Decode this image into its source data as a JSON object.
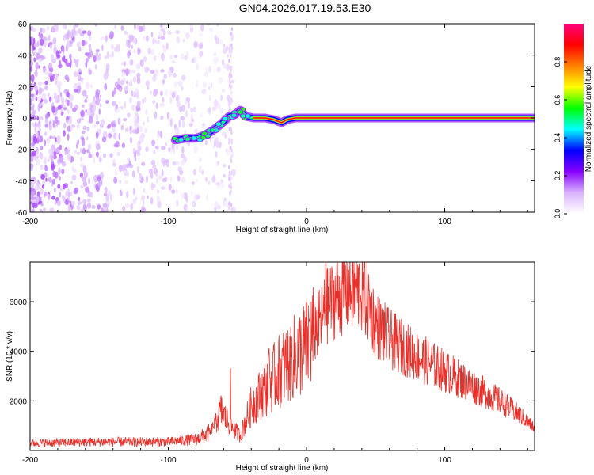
{
  "figure_title": "GN04.2026.017.19.53.E30",
  "chart_data": [
    {
      "type": "heatmap",
      "xlabel": "Height of straight line (km)",
      "ylabel": "Frequency (Hz)",
      "xlim": [
        -200,
        165
      ],
      "ylim": [
        -60,
        60
      ],
      "x_ticks": [
        -200,
        -100,
        0,
        100
      ],
      "y_ticks": [
        -60,
        -40,
        -20,
        0,
        20,
        40,
        60
      ],
      "colorbar": {
        "label": "Normalized spectral amplitude",
        "range": [
          0,
          1
        ],
        "ticks": [
          "0.0",
          "0.2",
          "0.4",
          "0.6",
          "0.8"
        ],
        "colors": [
          "#ffffff",
          "#d9b3ff",
          "#8800ff",
          "#0000ff",
          "#00ffff",
          "#00ff00",
          "#ffff00",
          "#ff8000",
          "#ff0000",
          "#ff0080"
        ]
      },
      "noise_region": {
        "x_range": [
          -200,
          -52
        ],
        "amplitude": 0.15
      },
      "doppler_track": [
        {
          "x": -95,
          "freq": -14
        },
        {
          "x": -88,
          "freq": -13
        },
        {
          "x": -80,
          "freq": -13
        },
        {
          "x": -74,
          "freq": -11
        },
        {
          "x": -68,
          "freq": -8
        },
        {
          "x": -62,
          "freq": -4
        },
        {
          "x": -56,
          "freq": 1
        },
        {
          "x": -52,
          "freq": 2
        },
        {
          "x": -48,
          "freq": 5
        },
        {
          "x": -44,
          "freq": 1
        },
        {
          "x": -38,
          "freq": 0
        },
        {
          "x": -30,
          "freq": 0
        },
        {
          "x": -24,
          "freq": -1
        },
        {
          "x": -18,
          "freq": -3
        },
        {
          "x": -14,
          "freq": -1
        },
        {
          "x": -8,
          "freq": 0
        },
        {
          "x": 0,
          "freq": 0
        },
        {
          "x": 165,
          "freq": 0
        }
      ]
    },
    {
      "type": "line",
      "xlabel": "Height of straight line (km)",
      "ylabel": "SNR (10 * v/v)",
      "xlim": [
        -200,
        165
      ],
      "ylim": [
        0,
        7600
      ],
      "x_ticks": [
        -200,
        -100,
        0,
        100
      ],
      "y_ticks": [
        2000,
        4000,
        6000
      ],
      "series": [
        {
          "color": "#e8302a",
          "envelope": [
            {
              "x": -200,
              "y": 300
            },
            {
              "x": -150,
              "y": 350
            },
            {
              "x": -100,
              "y": 350
            },
            {
              "x": -80,
              "y": 450
            },
            {
              "x": -70,
              "y": 700
            },
            {
              "x": -62,
              "y": 1600
            },
            {
              "x": -55,
              "y": 1000
            },
            {
              "x": -48,
              "y": 600
            },
            {
              "x": -40,
              "y": 1800
            },
            {
              "x": -30,
              "y": 2500
            },
            {
              "x": -20,
              "y": 3200
            },
            {
              "x": -10,
              "y": 3700
            },
            {
              "x": 0,
              "y": 4200
            },
            {
              "x": 10,
              "y": 5200
            },
            {
              "x": 15,
              "y": 5800
            },
            {
              "x": 20,
              "y": 6100
            },
            {
              "x": 30,
              "y": 6500
            },
            {
              "x": 40,
              "y": 6400
            },
            {
              "x": 45,
              "y": 5900
            },
            {
              "x": 50,
              "y": 5100
            },
            {
              "x": 60,
              "y": 4500
            },
            {
              "x": 80,
              "y": 3800
            },
            {
              "x": 100,
              "y": 3200
            },
            {
              "x": 120,
              "y": 2600
            },
            {
              "x": 140,
              "y": 2000
            },
            {
              "x": 155,
              "y": 1400
            },
            {
              "x": 165,
              "y": 900
            }
          ],
          "spikes": [
            {
              "x": 14,
              "y": 7600
            },
            {
              "x": 2,
              "y": 5300
            },
            {
              "x": -27,
              "y": 4100
            },
            {
              "x": -55,
              "y": 3300
            },
            {
              "x": -12,
              "y": 4600
            }
          ]
        }
      ]
    }
  ]
}
